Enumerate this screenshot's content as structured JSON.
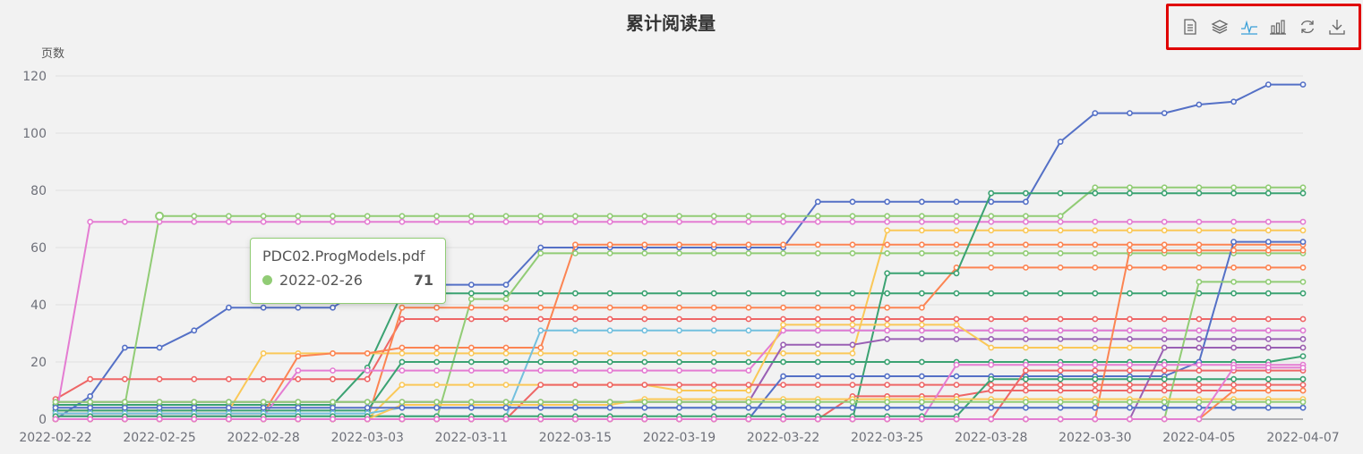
{
  "chart_data": {
    "type": "line",
    "title": "累计阅读量",
    "ylabel": "页数",
    "xlabel": "",
    "ylim": [
      0,
      120
    ],
    "yticks": [
      0,
      20,
      40,
      60,
      80,
      100,
      120
    ],
    "grid": true,
    "categories": [
      "2022-02-22",
      "2022-02-24",
      "2022-02-25",
      "2022-02-26",
      "2022-02-27",
      "2022-02-28",
      "2022-03-01",
      "2022-03-02",
      "2022-03-03",
      "2022-03-04",
      "2022-03-09",
      "2022-03-10",
      "2022-03-11",
      "2022-03-12",
      "2022-03-13",
      "2022-03-15",
      "2022-03-16",
      "2022-03-17",
      "2022-03-19",
      "2022-03-20",
      "2022-03-21",
      "2022-03-22",
      "2022-03-23",
      "2022-03-24",
      "2022-03-25",
      "2022-03-26",
      "2022-03-27",
      "2022-03-28",
      "2022-03-29",
      "2022-03-30",
      "2022-03-31",
      "2022-04-01",
      "2022-04-03",
      "2022-04-05",
      "2022-04-06",
      "2022-04-07",
      "2022-04-07b"
    ],
    "xtick_labels": [
      "2022-02-22",
      "2022-02-25",
      "2022-02-28",
      "2022-03-03",
      "2022-03-11",
      "2022-03-15",
      "2022-03-19",
      "2022-03-22",
      "2022-03-25",
      "2022-03-28",
      "2022-03-30",
      "2022-04-05",
      "2022-04-07"
    ],
    "series": [
      {
        "color": "#5470c6",
        "values": [
          0,
          8,
          25,
          25,
          31,
          39,
          39,
          39,
          39,
          47,
          47,
          47,
          47,
          47,
          60,
          60,
          60,
          60,
          60,
          60,
          60,
          60,
          76,
          76,
          76,
          76,
          76,
          76,
          76,
          97,
          107,
          107,
          107,
          110,
          111,
          117,
          117
        ]
      },
      {
        "color": "#91cc75",
        "values": [
          5,
          5,
          5,
          71,
          71,
          71,
          71,
          71,
          71,
          71,
          71,
          71,
          71,
          71,
          71,
          71,
          71,
          71,
          71,
          71,
          71,
          71,
          71,
          71,
          71,
          71,
          71,
          71,
          71,
          71,
          81,
          81,
          81,
          81,
          81,
          81,
          81
        ]
      },
      {
        "color": "#ee6666",
        "values": [
          7,
          14,
          14,
          14,
          14,
          14,
          14,
          14,
          14,
          14,
          35,
          35,
          35,
          35,
          35,
          35,
          35,
          35,
          35,
          35,
          35,
          35,
          35,
          35,
          35,
          35,
          35,
          35,
          35,
          35,
          35,
          35,
          35,
          35,
          35,
          35,
          35
        ]
      },
      {
        "color": "#e47cd2",
        "values": [
          0,
          69,
          69,
          69,
          69,
          69,
          69,
          69,
          69,
          69,
          69,
          69,
          69,
          69,
          69,
          69,
          69,
          69,
          69,
          69,
          69,
          69,
          69,
          69,
          69,
          69,
          69,
          69,
          69,
          69,
          69,
          69,
          69,
          69,
          69,
          69,
          69
        ]
      },
      {
        "color": "#3ba272",
        "values": [
          5,
          5,
          5,
          5,
          5,
          5,
          5,
          5,
          5,
          18,
          44,
          44,
          44,
          44,
          44,
          44,
          44,
          44,
          44,
          44,
          44,
          44,
          44,
          44,
          44,
          44,
          44,
          44,
          44,
          44,
          44,
          44,
          44,
          44,
          44,
          44,
          44
        ]
      },
      {
        "color": "#fac858",
        "values": [
          3,
          3,
          3,
          3,
          3,
          3,
          23,
          23,
          23,
          23,
          23,
          23,
          23,
          23,
          23,
          23,
          23,
          23,
          23,
          23,
          23,
          23,
          23,
          23,
          66,
          66,
          66,
          66,
          66,
          66,
          66,
          66,
          66,
          66,
          66,
          66,
          66
        ]
      },
      {
        "color": "#fc8452",
        "values": [
          2,
          2,
          2,
          2,
          2,
          2,
          2,
          22,
          23,
          23,
          25,
          25,
          25,
          25,
          25,
          61,
          61,
          61,
          61,
          61,
          61,
          61,
          61,
          61,
          61,
          61,
          61,
          61,
          61,
          61,
          61,
          61,
          61,
          61,
          61,
          61,
          61
        ]
      },
      {
        "color": "#91cc75",
        "values": [
          0,
          0,
          0,
          0,
          0,
          0,
          0,
          0,
          0,
          0,
          0,
          0,
          42,
          42,
          58,
          58,
          58,
          58,
          58,
          58,
          58,
          58,
          58,
          58,
          58,
          58,
          58,
          58,
          58,
          58,
          58,
          58,
          58,
          58,
          58,
          58,
          58
        ]
      },
      {
        "color": "#fc8452",
        "values": [
          0,
          0,
          0,
          0,
          0,
          0,
          0,
          0,
          0,
          0,
          39,
          39,
          39,
          39,
          39,
          39,
          39,
          39,
          39,
          39,
          39,
          39,
          39,
          39,
          39,
          39,
          53,
          53,
          53,
          53,
          53,
          53,
          53,
          53,
          53,
          53,
          53
        ]
      },
      {
        "color": "#3ba272",
        "values": [
          0,
          0,
          0,
          0,
          0,
          0,
          0,
          0,
          0,
          0,
          0,
          0,
          0,
          0,
          0,
          0,
          0,
          0,
          0,
          0,
          0,
          0,
          0,
          0,
          51,
          51,
          51,
          79,
          79,
          79,
          79,
          79,
          79,
          79,
          79,
          79,
          79
        ]
      },
      {
        "color": "#9a60b4",
        "values": [
          6,
          6,
          6,
          6,
          6,
          6,
          6,
          6,
          6,
          6,
          6,
          6,
          6,
          6,
          6,
          6,
          6,
          6,
          6,
          6,
          6,
          26,
          26,
          26,
          28,
          28,
          28,
          28,
          28,
          28,
          28,
          28,
          28,
          28,
          28,
          28,
          28
        ]
      },
      {
        "color": "#73c0de",
        "values": [
          1,
          1,
          1,
          1,
          1,
          1,
          1,
          1,
          1,
          1,
          1,
          1,
          1,
          1,
          31,
          31,
          31,
          31,
          31,
          31,
          31,
          31,
          31,
          31,
          31,
          31,
          31,
          31,
          31,
          31,
          31,
          31,
          31,
          31,
          31,
          31,
          31
        ]
      },
      {
        "color": "#e47cd2",
        "values": [
          1,
          1,
          1,
          1,
          1,
          1,
          1,
          17,
          17,
          17,
          17,
          17,
          17,
          17,
          17,
          17,
          17,
          17,
          17,
          17,
          17,
          31,
          31,
          31,
          31,
          31,
          31,
          31,
          31,
          31,
          31,
          31,
          31,
          31,
          31,
          31,
          31
        ]
      },
      {
        "color": "#3ba272",
        "values": [
          3,
          3,
          3,
          3,
          3,
          3,
          3,
          3,
          3,
          3,
          20,
          20,
          20,
          20,
          20,
          20,
          20,
          20,
          20,
          20,
          20,
          20,
          20,
          20,
          20,
          20,
          20,
          20,
          20,
          20,
          20,
          20,
          20,
          20,
          20,
          20,
          22
        ]
      },
      {
        "color": "#fac858",
        "values": [
          0,
          0,
          0,
          0,
          0,
          0,
          0,
          0,
          0,
          0,
          12,
          12,
          12,
          12,
          12,
          12,
          12,
          12,
          10,
          10,
          10,
          33,
          33,
          33,
          33,
          33,
          33,
          25,
          25,
          25,
          25,
          25,
          25,
          25,
          25,
          25,
          25
        ]
      },
      {
        "color": "#ee6666",
        "values": [
          0,
          0,
          0,
          0,
          0,
          0,
          0,
          0,
          0,
          0,
          0,
          0,
          0,
          0,
          12,
          12,
          12,
          12,
          12,
          12,
          12,
          12,
          12,
          12,
          12,
          12,
          12,
          12,
          12,
          12,
          12,
          12,
          12,
          12,
          12,
          12,
          12
        ]
      },
      {
        "color": "#5470c6",
        "values": [
          0,
          0,
          0,
          0,
          0,
          0,
          0,
          0,
          0,
          0,
          0,
          0,
          0,
          0,
          0,
          0,
          0,
          0,
          0,
          0,
          0,
          15,
          15,
          15,
          15,
          15,
          15,
          15,
          15,
          15,
          15,
          15,
          15,
          20,
          62,
          62,
          62
        ]
      },
      {
        "color": "#91cc75",
        "values": [
          0,
          0,
          0,
          0,
          0,
          0,
          0,
          0,
          0,
          0,
          0,
          0,
          0,
          0,
          0,
          0,
          0,
          0,
          0,
          0,
          0,
          0,
          0,
          0,
          0,
          0,
          0,
          0,
          0,
          0,
          0,
          0,
          0,
          48,
          48,
          48,
          48
        ]
      },
      {
        "color": "#fc8452",
        "values": [
          0,
          0,
          0,
          0,
          0,
          0,
          0,
          0,
          0,
          0,
          0,
          0,
          0,
          0,
          0,
          0,
          0,
          0,
          0,
          0,
          0,
          0,
          0,
          0,
          0,
          0,
          0,
          0,
          0,
          0,
          0,
          59,
          59,
          59,
          59,
          59,
          59
        ]
      },
      {
        "color": "#ee6666",
        "values": [
          0,
          0,
          0,
          0,
          0,
          0,
          0,
          0,
          0,
          0,
          0,
          0,
          0,
          0,
          0,
          0,
          0,
          0,
          0,
          0,
          0,
          0,
          0,
          8,
          8,
          8,
          8,
          10,
          10,
          10,
          10,
          10,
          10,
          10,
          10,
          10,
          10
        ]
      },
      {
        "color": "#e47cd2",
        "values": [
          0,
          0,
          0,
          0,
          0,
          0,
          0,
          0,
          0,
          0,
          0,
          0,
          0,
          0,
          0,
          0,
          0,
          0,
          0,
          0,
          0,
          0,
          0,
          0,
          0,
          0,
          19,
          19,
          19,
          19,
          19,
          19,
          19,
          19,
          19,
          19,
          19
        ]
      },
      {
        "color": "#9a60b4",
        "values": [
          0,
          0,
          0,
          0,
          0,
          0,
          0,
          0,
          0,
          0,
          0,
          0,
          0,
          0,
          0,
          0,
          0,
          0,
          0,
          0,
          0,
          0,
          0,
          0,
          0,
          0,
          0,
          0,
          0,
          0,
          0,
          0,
          25,
          25,
          25,
          25,
          25
        ]
      },
      {
        "color": "#73c0de",
        "values": [
          2,
          2,
          2,
          2,
          2,
          2,
          2,
          2,
          2,
          2,
          4,
          4,
          4,
          4,
          4,
          4,
          4,
          4,
          4,
          4,
          4,
          4,
          4,
          4,
          4,
          4,
          4,
          4,
          4,
          4,
          4,
          4,
          4,
          4,
          4,
          4,
          4
        ]
      },
      {
        "color": "#3ba272",
        "values": [
          1,
          1,
          1,
          1,
          1,
          1,
          1,
          1,
          1,
          1,
          1,
          1,
          1,
          1,
          1,
          1,
          1,
          1,
          1,
          1,
          1,
          1,
          1,
          1,
          1,
          1,
          1,
          14,
          14,
          14,
          14,
          14,
          14,
          14,
          14,
          14,
          14
        ]
      },
      {
        "color": "#fac858",
        "values": [
          0,
          0,
          0,
          0,
          0,
          0,
          0,
          0,
          0,
          0,
          5,
          5,
          5,
          5,
          5,
          5,
          5,
          7,
          7,
          7,
          7,
          7,
          7,
          7,
          7,
          7,
          7,
          7,
          7,
          7,
          7,
          7,
          7,
          7,
          7,
          7,
          7
        ]
      },
      {
        "color": "#ee6666",
        "values": [
          0,
          0,
          0,
          0,
          0,
          0,
          0,
          0,
          0,
          0,
          0,
          0,
          0,
          0,
          0,
          0,
          0,
          0,
          0,
          0,
          0,
          0,
          0,
          0,
          0,
          0,
          0,
          0,
          17,
          17,
          17,
          17,
          17,
          17,
          17,
          17,
          17
        ]
      },
      {
        "color": "#5470c6",
        "values": [
          4,
          4,
          4,
          4,
          4,
          4,
          4,
          4,
          4,
          4,
          4,
          4,
          4,
          4,
          4,
          4,
          4,
          4,
          4,
          4,
          4,
          4,
          4,
          4,
          4,
          4,
          4,
          4,
          4,
          4,
          4,
          4,
          4,
          4,
          4,
          4,
          4
        ]
      },
      {
        "color": "#fc8452",
        "values": [
          0,
          0,
          0,
          0,
          0,
          0,
          0,
          0,
          0,
          0,
          0,
          0,
          0,
          0,
          0,
          0,
          0,
          0,
          0,
          0,
          0,
          0,
          0,
          0,
          0,
          0,
          0,
          0,
          0,
          0,
          0,
          0,
          0,
          0,
          10,
          10,
          10
        ]
      },
      {
        "color": "#91cc75",
        "values": [
          6,
          6,
          6,
          6,
          6,
          6,
          6,
          6,
          6,
          6,
          6,
          6,
          6,
          6,
          6,
          6,
          6,
          6,
          6,
          6,
          6,
          6,
          6,
          6,
          6,
          6,
          6,
          6,
          6,
          6,
          6,
          6,
          6,
          6,
          6,
          6,
          6
        ]
      },
      {
        "color": "#e47cd2",
        "values": [
          0,
          0,
          0,
          0,
          0,
          0,
          0,
          0,
          0,
          0,
          0,
          0,
          0,
          0,
          0,
          0,
          0,
          0,
          0,
          0,
          0,
          0,
          0,
          0,
          0,
          0,
          0,
          0,
          0,
          0,
          0,
          0,
          0,
          0,
          18,
          18,
          18
        ]
      }
    ]
  },
  "tooltip": {
    "title": "PDC02.ProgModels.pdf",
    "date": "2022-02-26",
    "value": "71"
  },
  "toolbox": {
    "icons": [
      "data-view-icon",
      "stack-icon",
      "line-chart-icon",
      "bar-chart-icon",
      "restore-icon",
      "download-icon"
    ],
    "active_color": "#3aa0d8",
    "icon_color": "#666666"
  }
}
